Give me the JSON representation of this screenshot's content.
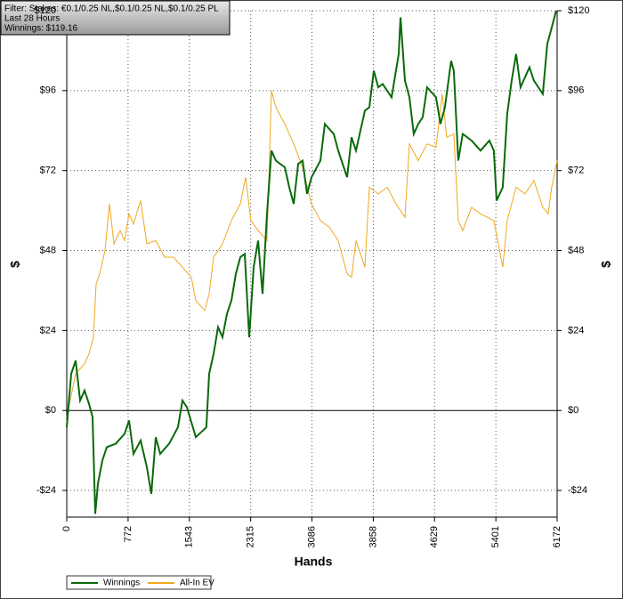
{
  "chart_data": {
    "type": "line",
    "annotations": [
      "Filter: Stakes: €0.1/0.25 NL,$0.1/0.25 NL,$0.1/0.25 PL",
      "Last  28 Hours",
      "Winnings: $119.16"
    ],
    "xlabel": "Hands",
    "ylabel": "$",
    "y2label": "$",
    "xlim": [
      0,
      6172
    ],
    "xticks": [
      0,
      772,
      1543,
      2315,
      3086,
      3858,
      4629,
      5401,
      6172
    ],
    "ylim": [
      -32,
      120
    ],
    "yticks": [
      {
        "value": -24,
        "label": "-$24"
      },
      {
        "value": 0,
        "label": "$0"
      },
      {
        "value": 24,
        "label": "$24"
      },
      {
        "value": 48,
        "label": "$48"
      },
      {
        "value": 72,
        "label": "$72"
      },
      {
        "value": 96,
        "label": "$96"
      },
      {
        "value": 120,
        "label": "$120"
      }
    ],
    "grid": true,
    "legend": "bottom-left",
    "series": [
      {
        "name": "Winnings",
        "color": "#0a6a0a",
        "x": [
          0,
          56,
          112,
          168,
          224,
          280,
          325,
          358,
          392,
          448,
          504,
          616,
          728,
          784,
          840,
          930,
          1008,
          1064,
          1120,
          1176,
          1288,
          1400,
          1456,
          1512,
          1624,
          1714,
          1758,
          1792,
          1848,
          1904,
          1960,
          2016,
          2072,
          2128,
          2184,
          2240,
          2296,
          2352,
          2408,
          2464,
          2520,
          2576,
          2632,
          2744,
          2800,
          2856,
          2912,
          2968,
          3024,
          3080,
          3192,
          3248,
          3360,
          3416,
          3472,
          3528,
          3584,
          3640,
          3752,
          3808,
          3864,
          3920,
          3976,
          4088,
          4178,
          4200,
          4256,
          4312,
          4368,
          4424,
          4480,
          4536,
          4648,
          4704,
          4760,
          4838,
          4872,
          4928,
          4984,
          5096,
          5208,
          5320,
          5376,
          5410,
          5488,
          5544,
          5600,
          5656,
          5712,
          5824,
          5880,
          5936,
          5992,
          6048,
          6082,
          6160
        ],
        "values": [
          -5,
          11,
          15,
          3,
          6,
          2,
          -2,
          -31,
          -22,
          -15,
          -11,
          -10,
          -7,
          -3,
          -13,
          -9,
          -17,
          -25,
          -8,
          -13,
          -10,
          -5,
          3,
          1,
          -8,
          -6,
          -5,
          11,
          17,
          25,
          22,
          29,
          33,
          41,
          46,
          47,
          22,
          43,
          51,
          35,
          59,
          78,
          75,
          73,
          67,
          62,
          74,
          75,
          65,
          70,
          75,
          86,
          83,
          78,
          74,
          70,
          82,
          78,
          90,
          91,
          102,
          97,
          98,
          94,
          107,
          118,
          99,
          94,
          83,
          86,
          88,
          97,
          94,
          86,
          91,
          105,
          102,
          75,
          83,
          81,
          78,
          81,
          78,
          63,
          67,
          89,
          99,
          107,
          97,
          103,
          99,
          97,
          95,
          110,
          113,
          120
        ]
      },
      {
        "name": "All-In EV",
        "color": "#f0a81e",
        "x": [
          0,
          112,
          224,
          280,
          336,
          370,
          414,
          482,
          538,
          594,
          672,
          728,
          784,
          840,
          930,
          1008,
          1120,
          1232,
          1344,
          1456,
          1568,
          1624,
          1736,
          1792,
          1848,
          1960,
          2072,
          2184,
          2251,
          2318,
          2408,
          2520,
          2576,
          2632,
          2744,
          2856,
          2968,
          3080,
          3192,
          3304,
          3416,
          3528,
          3584,
          3640,
          3752,
          3808,
          3920,
          4032,
          4144,
          4256,
          4312,
          4424,
          4536,
          4648,
          4726,
          4782,
          4872,
          4928,
          4984,
          5096,
          5208,
          5376,
          5488,
          5544,
          5656,
          5768,
          5880,
          5992,
          6059,
          6104,
          6172
        ],
        "values": [
          -2,
          11,
          14,
          17,
          22,
          38,
          41,
          48,
          62,
          50,
          54,
          51,
          59,
          56,
          63,
          50,
          51,
          46,
          46,
          43,
          40,
          33,
          30,
          35,
          46,
          50,
          57,
          62,
          70,
          57,
          54,
          51,
          96,
          91,
          86,
          80,
          73,
          62,
          57,
          55,
          51,
          41,
          40,
          51,
          43,
          67,
          65,
          67,
          62,
          58,
          80,
          75,
          80,
          79,
          95,
          82,
          83,
          57,
          54,
          61,
          59,
          57,
          43,
          57,
          67,
          65,
          69,
          61,
          59,
          67,
          75
        ]
      }
    ]
  }
}
